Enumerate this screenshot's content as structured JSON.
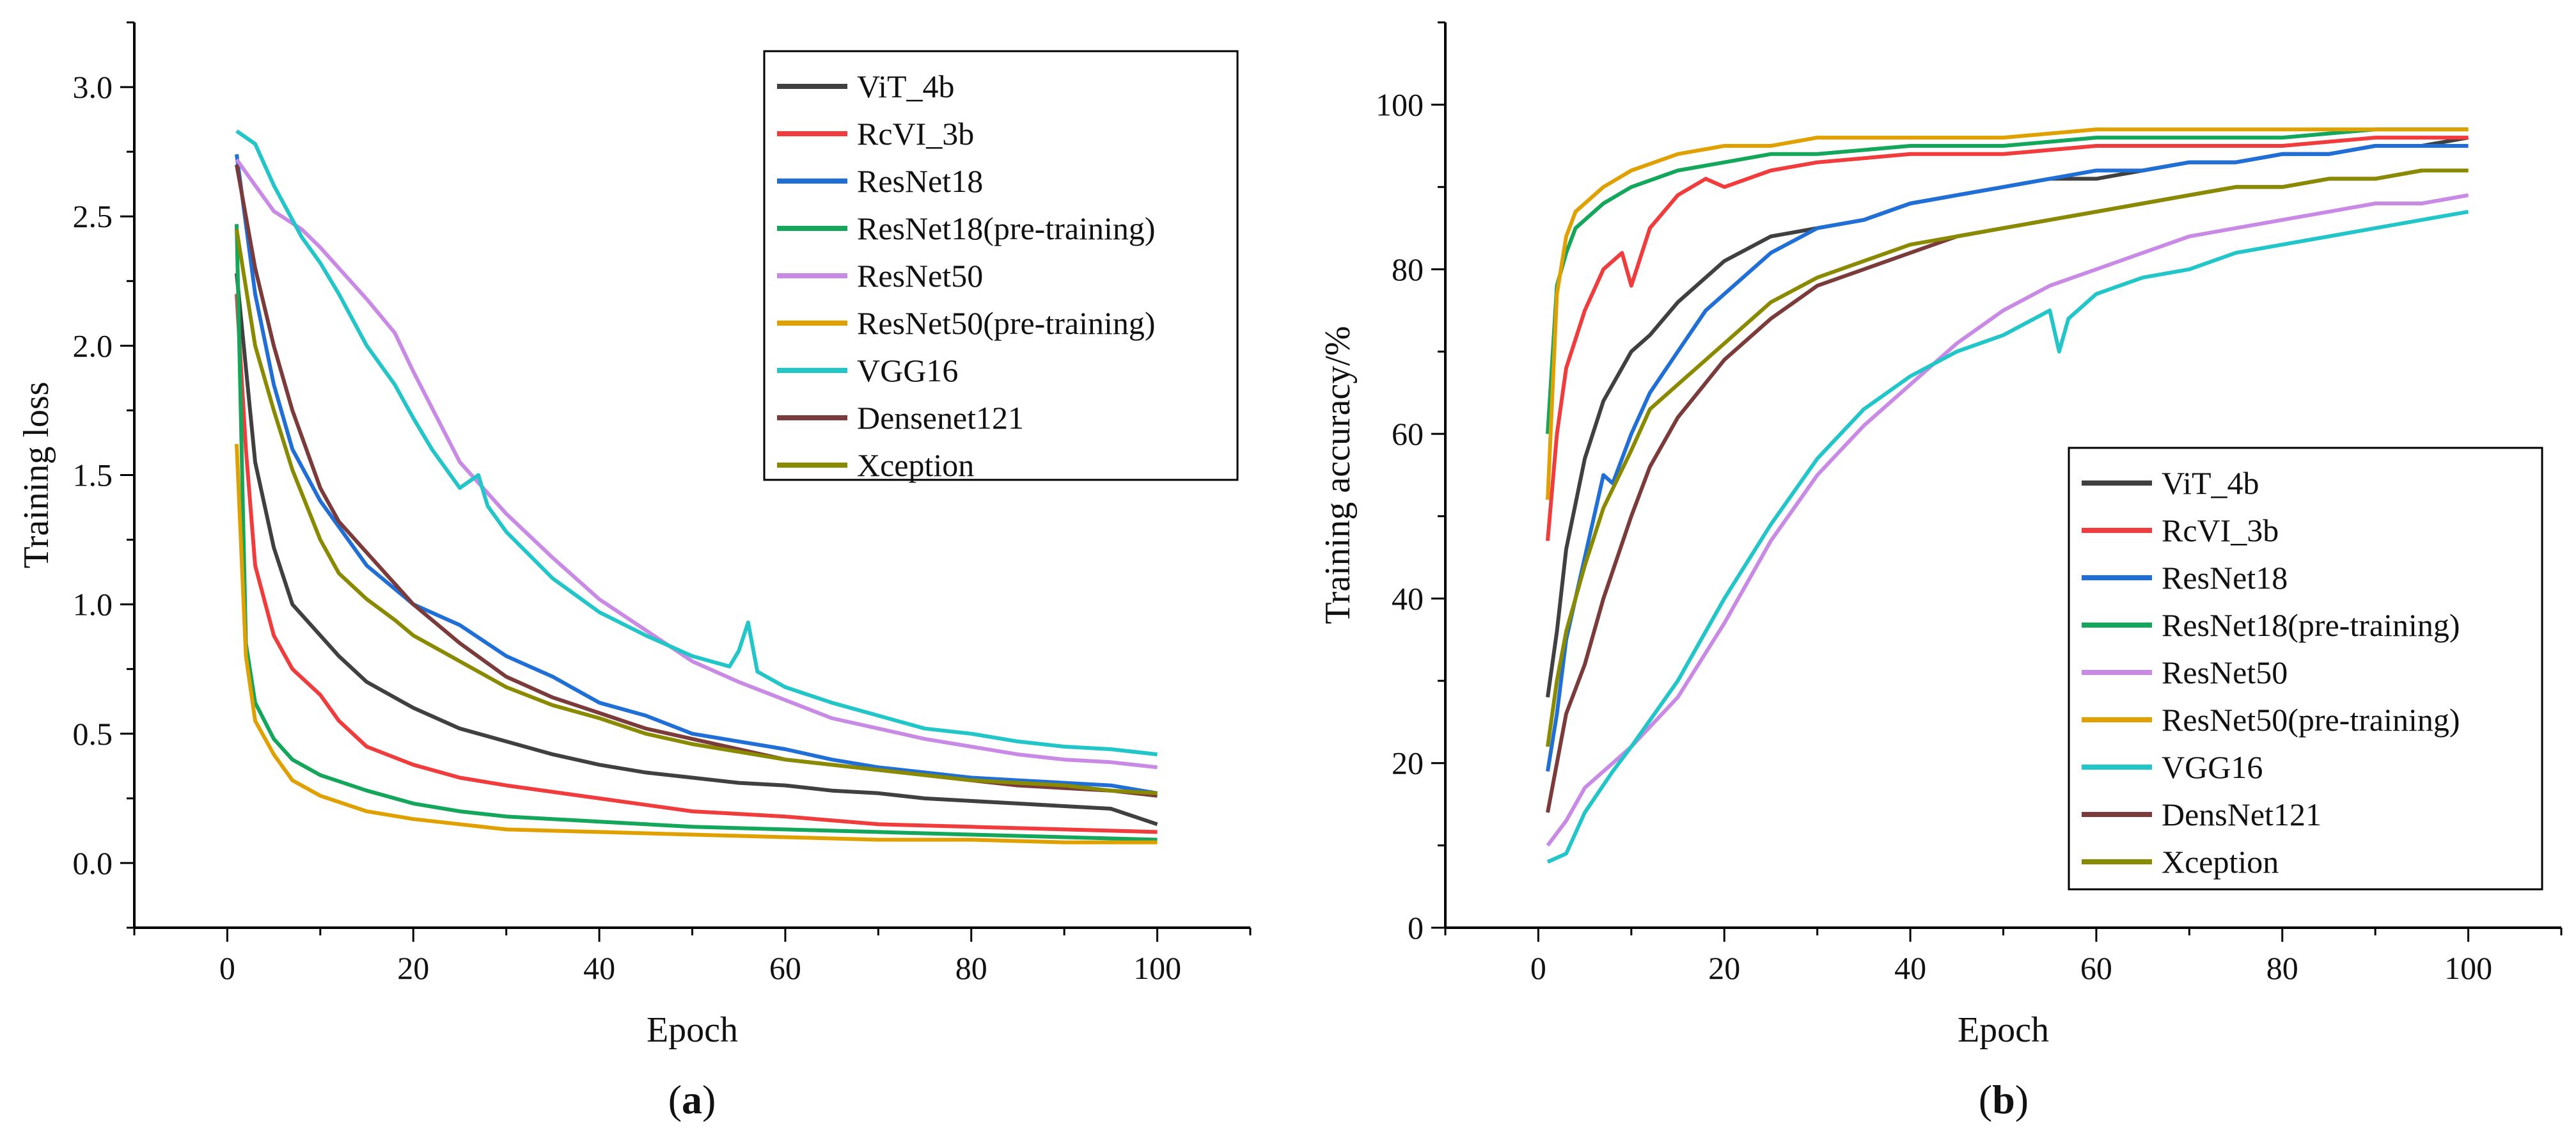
{
  "colors": {
    "ViT_4b": "#404040",
    "RcVI_3b": "#f03c3c",
    "ResNet18": "#1f6fd6",
    "ResNet18(pre-training)": "#14a65a",
    "ResNet50": "#c98ae6",
    "ResNet50(pre-training)": "#e0a100",
    "VGG16": "#22c5c8",
    "Densenet121": "#7b3b3b",
    "Xception": "#8a8a00"
  },
  "chart_data": [
    {
      "type": "line",
      "panel_label": "a",
      "xlabel": "Epoch",
      "ylabel": "Training loss",
      "xlim": [
        -10,
        110
      ],
      "ylim": [
        -0.25,
        3.25
      ],
      "xticks": [
        0,
        20,
        40,
        60,
        80,
        100
      ],
      "yticks": [
        0.0,
        0.5,
        1.0,
        1.5,
        2.0,
        2.5,
        3.0
      ],
      "xtick_labels": [
        "0",
        "20",
        "40",
        "60",
        "80",
        "100"
      ],
      "ytick_labels": [
        "0.0",
        "0.5",
        "1.0",
        "1.5",
        "2.0",
        "2.5",
        "3.0"
      ],
      "grid": false,
      "legend_position": "top-right",
      "series": [
        {
          "name": "ViT_4b",
          "x": [
            1,
            3,
            5,
            7,
            9,
            12,
            15,
            20,
            25,
            30,
            35,
            40,
            45,
            50,
            55,
            60,
            65,
            70,
            75,
            80,
            85,
            90,
            95,
            100
          ],
          "y": [
            2.28,
            1.55,
            1.22,
            1.0,
            0.92,
            0.8,
            0.7,
            0.6,
            0.52,
            0.47,
            0.42,
            0.38,
            0.35,
            0.33,
            0.31,
            0.3,
            0.28,
            0.27,
            0.25,
            0.24,
            0.23,
            0.22,
            0.21,
            0.15
          ]
        },
        {
          "name": "RcVI_3b",
          "x": [
            1,
            2,
            3,
            5,
            7,
            10,
            12,
            15,
            20,
            25,
            30,
            40,
            50,
            60,
            70,
            80,
            90,
            100
          ],
          "y": [
            2.2,
            1.6,
            1.15,
            0.88,
            0.75,
            0.65,
            0.55,
            0.45,
            0.38,
            0.33,
            0.3,
            0.25,
            0.2,
            0.18,
            0.15,
            0.14,
            0.13,
            0.12
          ]
        },
        {
          "name": "ResNet18",
          "x": [
            1,
            3,
            5,
            7,
            10,
            12,
            15,
            20,
            25,
            30,
            35,
            40,
            45,
            50,
            55,
            60,
            65,
            70,
            75,
            80,
            85,
            90,
            95,
            100
          ],
          "y": [
            2.74,
            2.2,
            1.85,
            1.6,
            1.4,
            1.3,
            1.15,
            1.0,
            0.92,
            0.8,
            0.72,
            0.62,
            0.57,
            0.5,
            0.47,
            0.44,
            0.4,
            0.37,
            0.35,
            0.33,
            0.32,
            0.31,
            0.3,
            0.27
          ]
        },
        {
          "name": "ResNet18(pre-training)",
          "x": [
            1,
            2,
            3,
            5,
            7,
            10,
            15,
            20,
            25,
            30,
            40,
            50,
            60,
            70,
            80,
            90,
            100
          ],
          "y": [
            2.47,
            0.85,
            0.62,
            0.48,
            0.4,
            0.34,
            0.28,
            0.23,
            0.2,
            0.18,
            0.16,
            0.14,
            0.13,
            0.12,
            0.11,
            0.1,
            0.09
          ]
        },
        {
          "name": "ResNet50",
          "x": [
            1,
            3,
            5,
            8,
            10,
            12,
            15,
            18,
            20,
            25,
            30,
            35,
            40,
            45,
            50,
            55,
            60,
            65,
            70,
            75,
            80,
            85,
            90,
            95,
            100
          ],
          "y": [
            2.72,
            2.62,
            2.52,
            2.45,
            2.38,
            2.3,
            2.18,
            2.05,
            1.9,
            1.55,
            1.35,
            1.18,
            1.02,
            0.9,
            0.78,
            0.7,
            0.63,
            0.56,
            0.52,
            0.48,
            0.45,
            0.42,
            0.4,
            0.39,
            0.37
          ]
        },
        {
          "name": "ResNet50(pre-training)",
          "x": [
            1,
            2,
            3,
            5,
            7,
            10,
            15,
            20,
            25,
            30,
            40,
            50,
            60,
            70,
            80,
            90,
            100
          ],
          "y": [
            1.62,
            0.8,
            0.55,
            0.42,
            0.32,
            0.26,
            0.2,
            0.17,
            0.15,
            0.13,
            0.12,
            0.11,
            0.1,
            0.09,
            0.09,
            0.08,
            0.08
          ]
        },
        {
          "name": "VGG16",
          "x": [
            1,
            3,
            5,
            8,
            10,
            12,
            15,
            18,
            20,
            22,
            25,
            27,
            28,
            30,
            35,
            40,
            45,
            50,
            54,
            55,
            56,
            57,
            60,
            65,
            70,
            75,
            80,
            85,
            90,
            95,
            100
          ],
          "y": [
            2.83,
            2.78,
            2.62,
            2.42,
            2.32,
            2.2,
            2.0,
            1.85,
            1.72,
            1.6,
            1.45,
            1.5,
            1.38,
            1.28,
            1.1,
            0.97,
            0.88,
            0.8,
            0.76,
            0.82,
            0.93,
            0.74,
            0.68,
            0.62,
            0.57,
            0.52,
            0.5,
            0.47,
            0.45,
            0.44,
            0.42
          ]
        },
        {
          "name": "Densenet121",
          "x": [
            1,
            3,
            5,
            7,
            10,
            12,
            15,
            18,
            20,
            25,
            30,
            35,
            40,
            45,
            50,
            55,
            60,
            65,
            70,
            75,
            80,
            85,
            90,
            95,
            100
          ],
          "y": [
            2.7,
            2.3,
            2.0,
            1.75,
            1.45,
            1.32,
            1.2,
            1.08,
            1.0,
            0.85,
            0.72,
            0.64,
            0.58,
            0.52,
            0.48,
            0.44,
            0.4,
            0.38,
            0.36,
            0.34,
            0.32,
            0.3,
            0.29,
            0.28,
            0.26
          ]
        },
        {
          "name": "Xception",
          "x": [
            1,
            3,
            5,
            7,
            10,
            12,
            15,
            18,
            20,
            25,
            30,
            35,
            40,
            45,
            50,
            55,
            60,
            65,
            70,
            75,
            80,
            85,
            90,
            95,
            100
          ],
          "y": [
            2.45,
            2.0,
            1.75,
            1.52,
            1.25,
            1.12,
            1.02,
            0.94,
            0.88,
            0.78,
            0.68,
            0.61,
            0.56,
            0.5,
            0.46,
            0.43,
            0.4,
            0.38,
            0.36,
            0.34,
            0.32,
            0.31,
            0.3,
            0.28,
            0.27
          ]
        }
      ]
    },
    {
      "type": "line",
      "panel_label": "b",
      "xlabel": "Epoch",
      "ylabel": "Training accuracy/%",
      "xlim": [
        -10,
        110
      ],
      "ylim": [
        0,
        110
      ],
      "xticks": [
        0,
        20,
        40,
        60,
        80,
        100
      ],
      "yticks": [
        0,
        20,
        40,
        60,
        80,
        100
      ],
      "xtick_labels": [
        "0",
        "20",
        "40",
        "60",
        "80",
        "100"
      ],
      "ytick_labels": [
        "0",
        "20",
        "40",
        "60",
        "80",
        "100"
      ],
      "grid": false,
      "legend_position": "bottom-right",
      "series": [
        {
          "name": "ViT_4b",
          "x": [
            1,
            2,
            3,
            5,
            7,
            10,
            12,
            15,
            20,
            25,
            30,
            35,
            40,
            45,
            50,
            55,
            60,
            65,
            70,
            75,
            80,
            85,
            90,
            95,
            100
          ],
          "y": [
            28,
            36,
            46,
            57,
            64,
            70,
            72,
            76,
            81,
            84,
            85,
            86,
            88,
            89,
            90,
            91,
            91,
            92,
            93,
            93,
            94,
            94,
            95,
            95,
            96
          ]
        },
        {
          "name": "RcVI_3b",
          "x": [
            1,
            2,
            3,
            5,
            7,
            9,
            10,
            12,
            15,
            18,
            20,
            25,
            30,
            40,
            50,
            60,
            70,
            80,
            90,
            100
          ],
          "y": [
            47,
            60,
            68,
            75,
            80,
            82,
            78,
            85,
            89,
            91,
            90,
            92,
            93,
            94,
            94,
            95,
            95,
            95,
            96,
            96
          ]
        },
        {
          "name": "ResNet18",
          "x": [
            1,
            2,
            3,
            5,
            7,
            8,
            10,
            12,
            15,
            18,
            20,
            25,
            30,
            35,
            40,
            45,
            50,
            55,
            60,
            65,
            70,
            75,
            80,
            85,
            90,
            95,
            100
          ],
          "y": [
            19,
            26,
            35,
            45,
            55,
            54,
            60,
            65,
            70,
            75,
            77,
            82,
            85,
            86,
            88,
            89,
            90,
            91,
            92,
            92,
            93,
            93,
            94,
            94,
            95,
            95,
            95
          ]
        },
        {
          "name": "ResNet18(pre-training)",
          "x": [
            1,
            2,
            3,
            4,
            5,
            7,
            10,
            15,
            20,
            25,
            30,
            40,
            50,
            60,
            70,
            80,
            90,
            100
          ],
          "y": [
            60,
            78,
            82,
            85,
            86,
            88,
            90,
            92,
            93,
            94,
            94,
            95,
            95,
            96,
            96,
            96,
            97,
            97
          ]
        },
        {
          "name": "ResNet50",
          "x": [
            1,
            3,
            5,
            8,
            10,
            15,
            20,
            25,
            30,
            35,
            40,
            45,
            50,
            55,
            60,
            65,
            70,
            75,
            80,
            85,
            90,
            95,
            100
          ],
          "y": [
            10,
            13,
            17,
            20,
            22,
            28,
            37,
            47,
            55,
            61,
            66,
            71,
            75,
            78,
            80,
            82,
            84,
            85,
            86,
            87,
            88,
            88,
            89
          ]
        },
        {
          "name": "ResNet50(pre-training)",
          "x": [
            1,
            2,
            3,
            4,
            5,
            7,
            10,
            15,
            20,
            25,
            30,
            40,
            50,
            60,
            70,
            80,
            90,
            100
          ],
          "y": [
            52,
            77,
            84,
            87,
            88,
            90,
            92,
            94,
            95,
            95,
            96,
            96,
            96,
            97,
            97,
            97,
            97,
            97
          ]
        },
        {
          "name": "VGG16",
          "x": [
            1,
            3,
            5,
            8,
            10,
            15,
            20,
            25,
            30,
            35,
            40,
            45,
            50,
            55,
            56,
            57,
            60,
            65,
            70,
            75,
            80,
            85,
            90,
            95,
            100
          ],
          "y": [
            8,
            9,
            14,
            19,
            22,
            30,
            40,
            49,
            57,
            63,
            67,
            70,
            72,
            75,
            70,
            74,
            77,
            79,
            80,
            82,
            83,
            84,
            85,
            86,
            87
          ]
        },
        {
          "name": "DensNet121",
          "x": [
            1,
            2,
            3,
            5,
            7,
            10,
            12,
            15,
            20,
            25,
            30,
            35,
            40,
            45,
            50,
            55,
            60,
            65,
            70,
            75,
            80,
            85,
            90,
            95,
            100
          ],
          "y": [
            14,
            20,
            26,
            32,
            40,
            50,
            56,
            62,
            69,
            74,
            78,
            80,
            82,
            84,
            85,
            86,
            87,
            88,
            89,
            90,
            90,
            91,
            91,
            92,
            92
          ]
        },
        {
          "name": "Xception",
          "x": [
            1,
            2,
            3,
            5,
            7,
            10,
            12,
            15,
            20,
            25,
            30,
            35,
            40,
            45,
            50,
            55,
            60,
            65,
            70,
            75,
            80,
            85,
            90,
            95,
            100
          ],
          "y": [
            22,
            30,
            36,
            44,
            51,
            58,
            63,
            66,
            71,
            76,
            79,
            81,
            83,
            84,
            85,
            86,
            87,
            88,
            89,
            90,
            90,
            91,
            91,
            92,
            92
          ]
        }
      ]
    }
  ]
}
